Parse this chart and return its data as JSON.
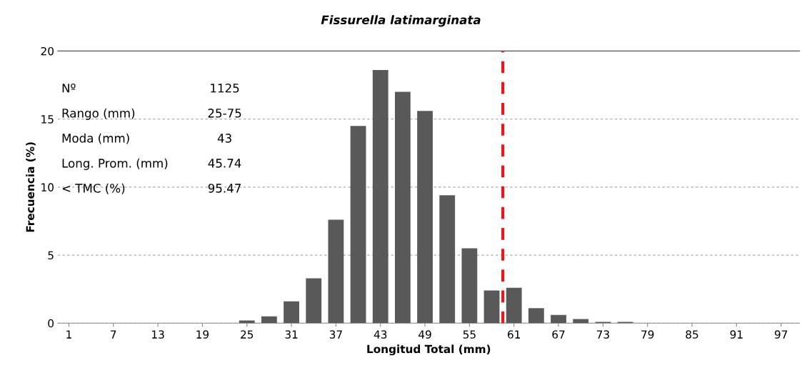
{
  "chart_data": {
    "type": "bar",
    "title": "Fissurella latimarginata",
    "xlabel": "Longitud Total (mm)",
    "ylabel": "Frecuencia (%)",
    "x": [
      1,
      4,
      7,
      10,
      13,
      16,
      19,
      22,
      25,
      28,
      31,
      34,
      37,
      40,
      43,
      46,
      49,
      52,
      55,
      58,
      61,
      64,
      67,
      70,
      73,
      76,
      79,
      82,
      85,
      88,
      91,
      94,
      97
    ],
    "values": [
      0,
      0,
      0,
      0,
      0,
      0,
      0,
      0,
      0.2,
      0.5,
      1.6,
      3.3,
      7.6,
      14.5,
      18.6,
      17.0,
      15.6,
      9.4,
      5.5,
      2.4,
      2.6,
      1.1,
      0.6,
      0.3,
      0.1,
      0.1,
      0,
      0,
      0,
      0,
      0,
      0,
      0
    ],
    "color": "#595959",
    "xlim": [
      -0.5,
      99.5
    ],
    "xticks": [
      1,
      7,
      13,
      19,
      25,
      31,
      37,
      43,
      49,
      55,
      61,
      67,
      73,
      79,
      85,
      91,
      97
    ],
    "ylim": [
      0,
      20
    ],
    "yticks": [
      0,
      5,
      10,
      15,
      20
    ],
    "grid": "y",
    "ref_lines": [
      {
        "axis": "x",
        "value": 59.5,
        "color": "#e31a1c",
        "line_style": "dashed"
      }
    ],
    "annotations": [
      "Nº",
      "1125",
      "Rango (mm)",
      "25-75",
      "Moda (mm)",
      "43",
      "Long. Prom. (mm)",
      "45.74",
      "< TMC (%)",
      "95.47"
    ]
  }
}
